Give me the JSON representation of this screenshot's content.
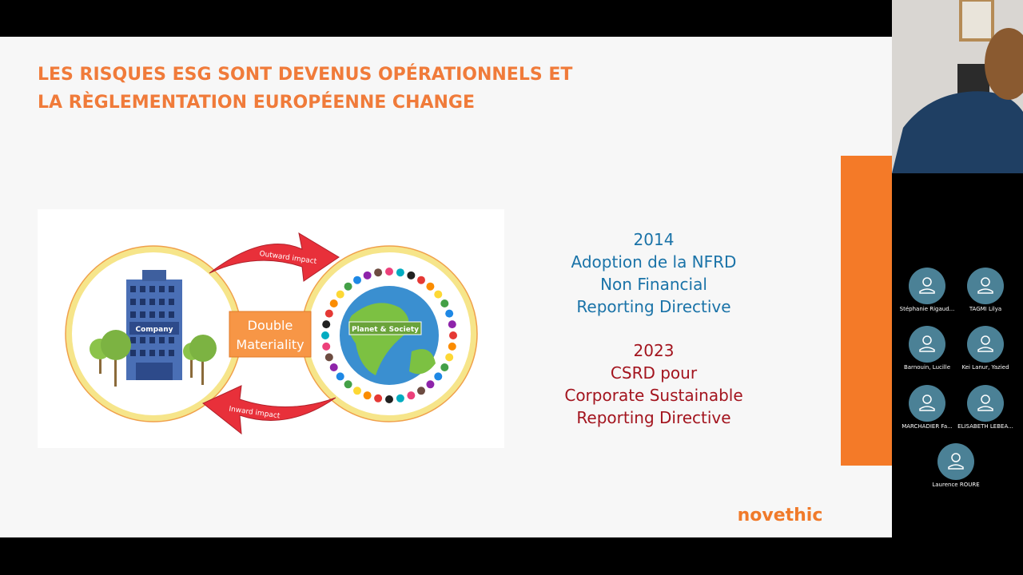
{
  "slide": {
    "title_lines": [
      "LES RISQUES ESG SONT DEVENUS OPÉRATIONNELS ET",
      "LA RÈGLEMENTATION EUROPÉENNE CHANGE"
    ],
    "diagram": {
      "outward": "Outward impact",
      "inward": "Inward impact",
      "company": "Company",
      "center_lines": [
        "Double",
        "Materiality"
      ],
      "planet": "Planet & Society"
    },
    "nfrd_lines": [
      "2014",
      "Adoption de la NFRD",
      "Non Financial",
      "Reporting Directive"
    ],
    "csrd_lines": [
      "2023",
      "CSRD  pour",
      "Corporate Sustainable",
      "Reporting Directive"
    ],
    "logo": "novethic"
  },
  "participants": [
    "Stéphanie Rigaud...",
    "TAGMI Lilya",
    "Barnouin, Lucille",
    "Kei Lanur, Yazied",
    "MARCHADIER Fa...",
    "ELISABETH LEBEA...",
    "Laurence ROURE"
  ]
}
